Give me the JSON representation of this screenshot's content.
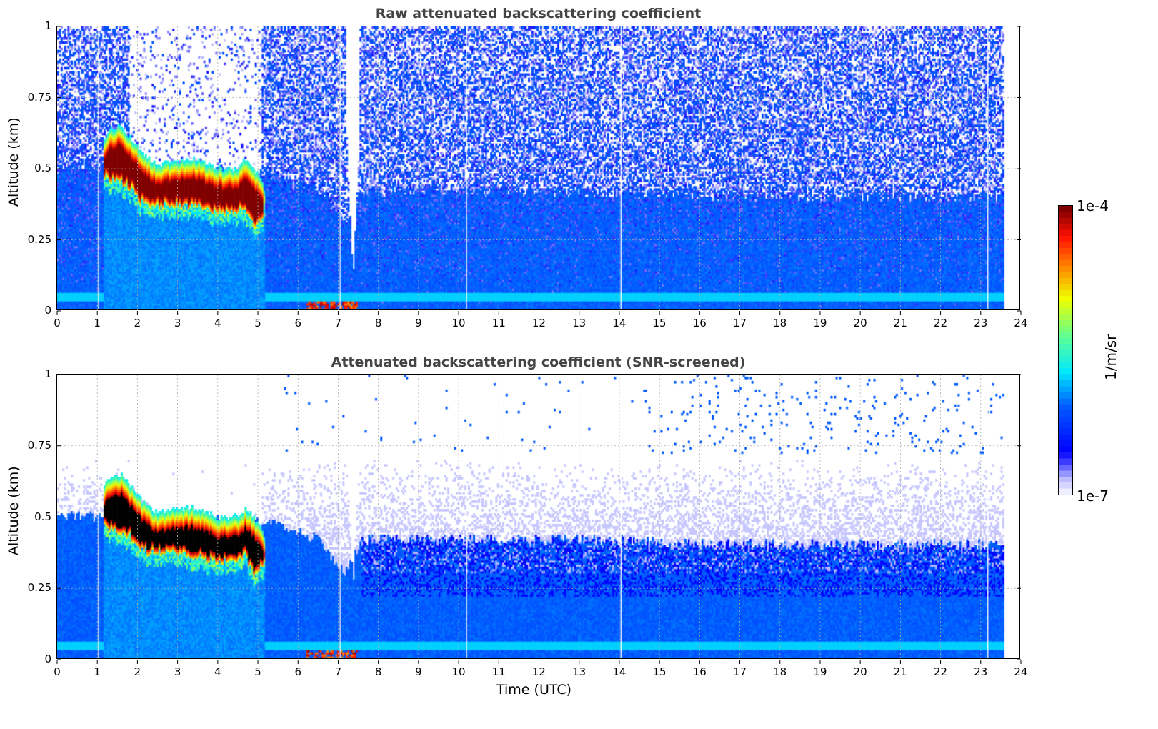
{
  "chart_data": [
    {
      "type": "heatmap",
      "title": "Raw attenuated backscattering coefficient",
      "xlabel": "",
      "ylabel": "Altitude (km)",
      "xlim": [
        0,
        24
      ],
      "ylim": [
        0,
        1
      ],
      "xticks": [
        "0",
        "1",
        "2",
        "3",
        "4",
        "5",
        "6",
        "7",
        "8",
        "9",
        "10",
        "11",
        "12",
        "13",
        "14",
        "15",
        "16",
        "17",
        "18",
        "19",
        "20",
        "21",
        "22",
        "23",
        "24"
      ],
      "yticks": [
        "0",
        "0.25",
        "0.5",
        "0.75",
        "1"
      ],
      "screened": false,
      "grid": true
    },
    {
      "type": "heatmap",
      "title": "Attenuated backscattering coefficient (SNR-screened)",
      "xlabel": "Time (UTC)",
      "ylabel": "Altitude (km)",
      "xlim": [
        0,
        24
      ],
      "ylim": [
        0,
        1
      ],
      "xticks": [
        "0",
        "1",
        "2",
        "3",
        "4",
        "5",
        "6",
        "7",
        "8",
        "9",
        "10",
        "11",
        "12",
        "13",
        "14",
        "15",
        "16",
        "17",
        "18",
        "19",
        "20",
        "21",
        "22",
        "23",
        "24"
      ],
      "yticks": [
        "0",
        "0.25",
        "0.5",
        "0.75",
        "1"
      ],
      "screened": true,
      "grid": true
    }
  ],
  "colorbar": {
    "label": "1/m/sr",
    "max_label": "1e-4",
    "min_label": "1e-7",
    "clim_log10": [
      -7,
      -4
    ],
    "colormap": "jet-with-lavender-low-end"
  },
  "features": {
    "data_end_hour": 23.6,
    "cloud_layer_km": [
      [
        1.15,
        0.47,
        0.6
      ],
      [
        1.3,
        0.46,
        0.64
      ],
      [
        1.6,
        0.45,
        0.65
      ],
      [
        1.9,
        0.42,
        0.6
      ],
      [
        2.1,
        0.38,
        0.56
      ],
      [
        2.5,
        0.37,
        0.51
      ],
      [
        3.0,
        0.37,
        0.53
      ],
      [
        3.5,
        0.36,
        0.53
      ],
      [
        4.0,
        0.34,
        0.5
      ],
      [
        4.5,
        0.35,
        0.5
      ],
      [
        4.7,
        0.36,
        0.53
      ],
      [
        4.9,
        0.29,
        0.5
      ],
      [
        5.05,
        0.3,
        0.47
      ],
      [
        5.2,
        0.37,
        0.42
      ]
    ],
    "boundary_layer_top_km": [
      [
        0,
        0.5
      ],
      [
        1.2,
        0.5
      ],
      [
        5.2,
        0.48
      ],
      [
        6.5,
        0.42
      ],
      [
        7.2,
        0.3
      ],
      [
        7.6,
        0.42
      ],
      [
        12,
        0.42
      ],
      [
        18,
        0.4
      ],
      [
        22,
        0.4
      ],
      [
        23.6,
        0.4
      ]
    ],
    "signal_dip_hour": 7.38,
    "ground_clutter_hours": [
      6.2,
      7.5
    ],
    "missing_profile_hours": [
      1.02,
      7.05,
      10.2,
      14.05,
      23.2
    ]
  }
}
